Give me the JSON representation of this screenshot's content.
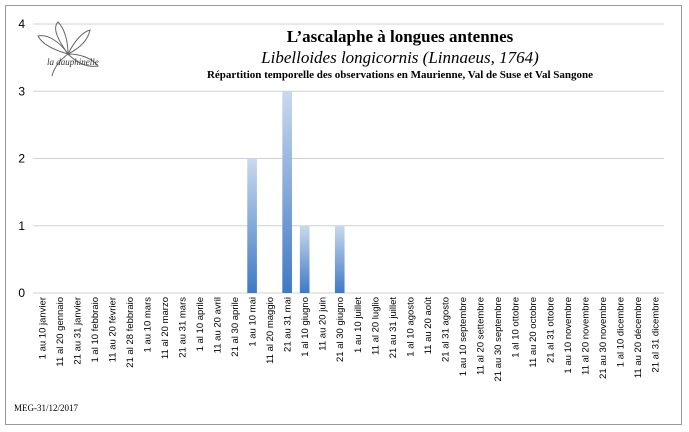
{
  "logo": {
    "text": "la dauphinelle"
  },
  "footer": "MEG-31/12/2017",
  "chart_data": {
    "type": "bar",
    "title": "L’ascalaphe à longues antennes",
    "subtitle": "Libelloides longicornis (Linnaeus, 1764)",
    "caption": "Répartition temporelle des observations en Maurienne, Val de Suse et Val Sangone",
    "xlabel": "",
    "ylabel": "",
    "ylim": [
      0,
      4
    ],
    "yticks": [
      0,
      1,
      2,
      3,
      4
    ],
    "grid": true,
    "legend": "none",
    "bar_color_top": "#c9d9ee",
    "bar_color_bottom": "#3f79c4",
    "categories": [
      "1 au 10 janvier",
      "11 al 20 gennaio",
      "21 au 31 janvier",
      "1 al 10 febbraio",
      "11 au 20 février",
      "21 al 28 febbraio",
      "1 au 10 mars",
      "11 al 20 marzo",
      "21 au 31 mars",
      "1 al 10 aprile",
      "11 au 20 avril",
      "21 al 30 aprile",
      "1 au 10 mai",
      "11 al 20 maggio",
      "21 au 31 mai",
      "1 al 10 giugno",
      "11 au 20 juin",
      "21 al 30 giugno",
      "1 au 10 juillet",
      "11 al 20 luglio",
      "21 au 31 juillet",
      "1 al 10 agosto",
      "11 au 20 août",
      "21 al 31 agosto",
      "1 au 10 septembre",
      "11 al 20 settembre",
      "21 au 30 septembre",
      "1 al 10 ottobre",
      "11 au 20 octobre",
      "21 al 31 ottobre",
      "1 au 10 novembre",
      "11 al 20 novembre",
      "21 au 30 novembre",
      "1 al 10 dicembre",
      "11 au 20 décembre",
      "21 al 31 dicembre"
    ],
    "values": [
      0,
      0,
      0,
      0,
      0,
      0,
      0,
      0,
      0,
      0,
      0,
      0,
      2,
      0,
      3,
      1,
      0,
      1,
      0,
      0,
      0,
      0,
      0,
      0,
      0,
      0,
      0,
      0,
      0,
      0,
      0,
      0,
      0,
      0,
      0,
      0
    ]
  }
}
